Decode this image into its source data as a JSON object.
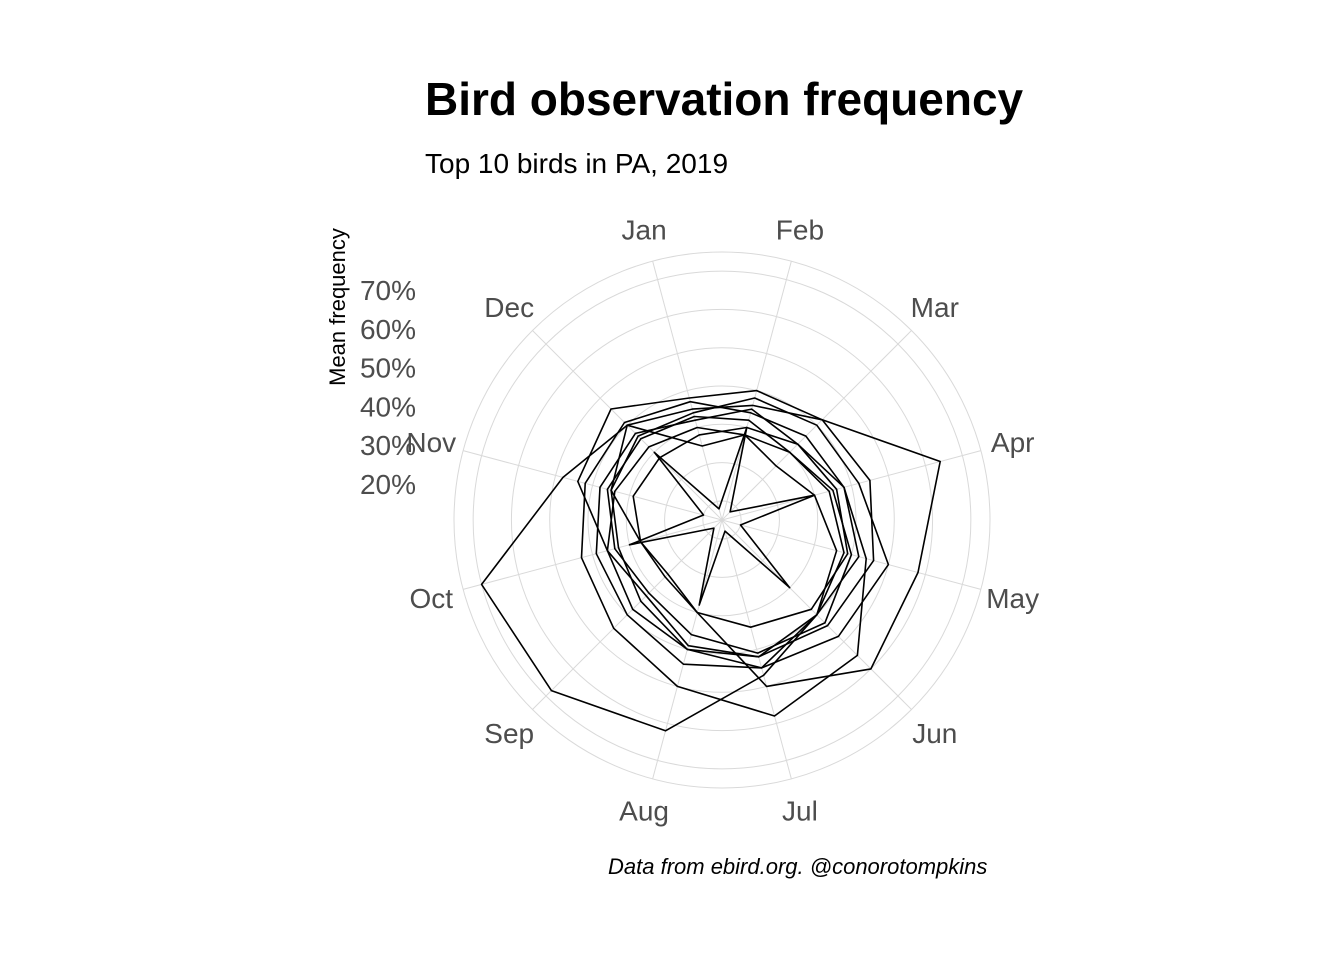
{
  "chart_data": {
    "type": "line",
    "coordinate_system": "polar",
    "title": "Bird observation frequency",
    "subtitle": "Top 10 birds in PA, 2019",
    "caption": "Data from ebird.org. @conorotompkins",
    "ylabel": "Mean frequency",
    "ytick_labels": [
      "20%",
      "30%",
      "40%",
      "50%",
      "60%",
      "70%"
    ],
    "yticks": [
      0.2,
      0.3,
      0.4,
      0.5,
      0.6,
      0.7
    ],
    "ylim": [
      0.05,
      0.75
    ],
    "categories": [
      "Jan",
      "Feb",
      "Mar",
      "Apr",
      "May",
      "Jun",
      "Jul",
      "Aug",
      "Sep",
      "Oct",
      "Nov",
      "Dec"
    ],
    "grid": true,
    "line_color": "#000000",
    "grid_color": "#d9d9d9",
    "series": [
      {
        "values": [
          0.35,
          0.36,
          0.42,
          0.64,
          0.58,
          0.6,
          0.5,
          0.3,
          0.25,
          0.27,
          0.35,
          0.4
        ]
      },
      {
        "values": [
          0.37,
          0.34,
          0.36,
          0.38,
          0.44,
          0.55,
          0.58,
          0.5,
          0.45,
          0.43,
          0.42,
          0.41
        ]
      },
      {
        "values": [
          0.25,
          0.28,
          0.3,
          0.34,
          0.38,
          0.4,
          0.47,
          0.62,
          0.68,
          0.7,
          0.48,
          0.4
        ]
      },
      {
        "values": [
          0.32,
          0.35,
          0.33,
          0.38,
          0.42,
          0.4,
          0.45,
          0.44,
          0.4,
          0.39,
          0.38,
          0.37
        ]
      },
      {
        "values": [
          0.3,
          0.28,
          0.25,
          0.3,
          0.36,
          0.4,
          0.42,
          0.39,
          0.33,
          0.36,
          0.34,
          0.32
        ]
      },
      {
        "values": [
          0.38,
          0.4,
          0.42,
          0.45,
          0.46,
          0.44,
          0.42,
          0.4,
          0.38,
          0.36,
          0.44,
          0.46
        ]
      },
      {
        "values": [
          0.34,
          0.38,
          0.4,
          0.42,
          0.5,
          0.48,
          0.45,
          0.4,
          0.35,
          0.33,
          0.35,
          0.36
        ]
      },
      {
        "values": [
          0.28,
          0.3,
          0.33,
          0.36,
          0.39,
          0.38,
          0.34,
          0.3,
          0.26,
          0.27,
          0.29,
          0.28
        ]
      },
      {
        "values": [
          0.33,
          0.32,
          0.3,
          0.35,
          0.4,
          0.43,
          0.41,
          0.36,
          0.32,
          0.34,
          0.36,
          0.35
        ]
      },
      {
        "values": [
          0.08,
          0.3,
          0.08,
          0.3,
          0.1,
          0.3,
          0.08,
          0.28,
          0.08,
          0.3,
          0.1,
          0.3
        ]
      }
    ]
  }
}
